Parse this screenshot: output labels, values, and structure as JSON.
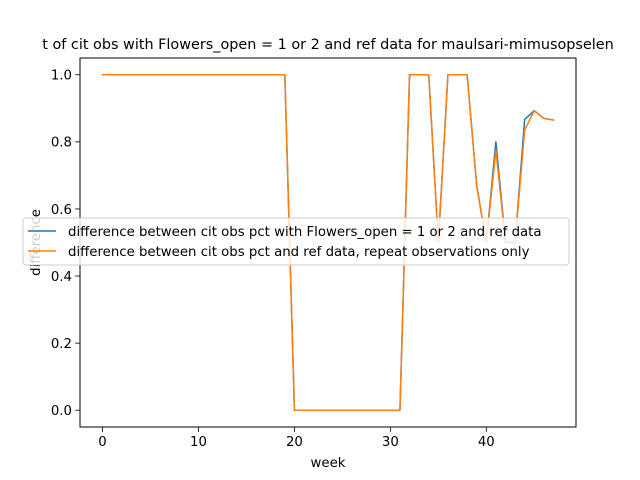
{
  "chart_data": {
    "type": "line",
    "title": "t of cit obs with Flowers_open = 1 or 2 and ref data for maulsari-mimusopselen",
    "xlabel": "week",
    "ylabel": "difference",
    "xlim": [
      -2.35,
      49.35
    ],
    "ylim": [
      -0.05,
      1.05
    ],
    "xticks": [
      0,
      10,
      20,
      30,
      40
    ],
    "yticks": [
      0.0,
      0.2,
      0.4,
      0.6,
      0.8,
      1.0
    ],
    "ytick_labels": [
      "0.0",
      "0.2",
      "0.4",
      "0.6",
      "0.8",
      "1.0"
    ],
    "grid": false,
    "legend_position": "center-left",
    "x": [
      0,
      1,
      2,
      3,
      4,
      5,
      6,
      7,
      8,
      9,
      10,
      11,
      12,
      13,
      14,
      15,
      16,
      17,
      18,
      19,
      20,
      21,
      22,
      23,
      24,
      25,
      26,
      27,
      28,
      29,
      30,
      31,
      32,
      33,
      34,
      35,
      36,
      37,
      38,
      39,
      40,
      41,
      42,
      43,
      44,
      45,
      46,
      47
    ],
    "series": [
      {
        "name": "difference between cit obs pct with Flowers_open = 1 or 2 and ref data",
        "color": "#1f77b4",
        "values": [
          1,
          1,
          1,
          1,
          1,
          1,
          1,
          1,
          1,
          1,
          1,
          1,
          1,
          1,
          1,
          1,
          1,
          1,
          1,
          1,
          0,
          0,
          0,
          0,
          0,
          0,
          0,
          0,
          0,
          0,
          0,
          0,
          1,
          1,
          1,
          0.5,
          1,
          1,
          1,
          0.67,
          0.5,
          0.8,
          0.5,
          0.5,
          0.867,
          0.893,
          0.87,
          0.865
        ]
      },
      {
        "name": "difference between cit obs pct and ref data, repeat observations only",
        "color": "#ff7f0e",
        "values": [
          1,
          1,
          1,
          1,
          1,
          1,
          1,
          1,
          1,
          1,
          1,
          1,
          1,
          1,
          1,
          1,
          1,
          1,
          1,
          1,
          0,
          0,
          0,
          0,
          0,
          0,
          0,
          0,
          0,
          0,
          0,
          0,
          1,
          1,
          1,
          0.5,
          1,
          1,
          1,
          0.67,
          0.5,
          0.775,
          0.5,
          0.5,
          0.835,
          0.893,
          0.87,
          0.865
        ]
      }
    ]
  }
}
